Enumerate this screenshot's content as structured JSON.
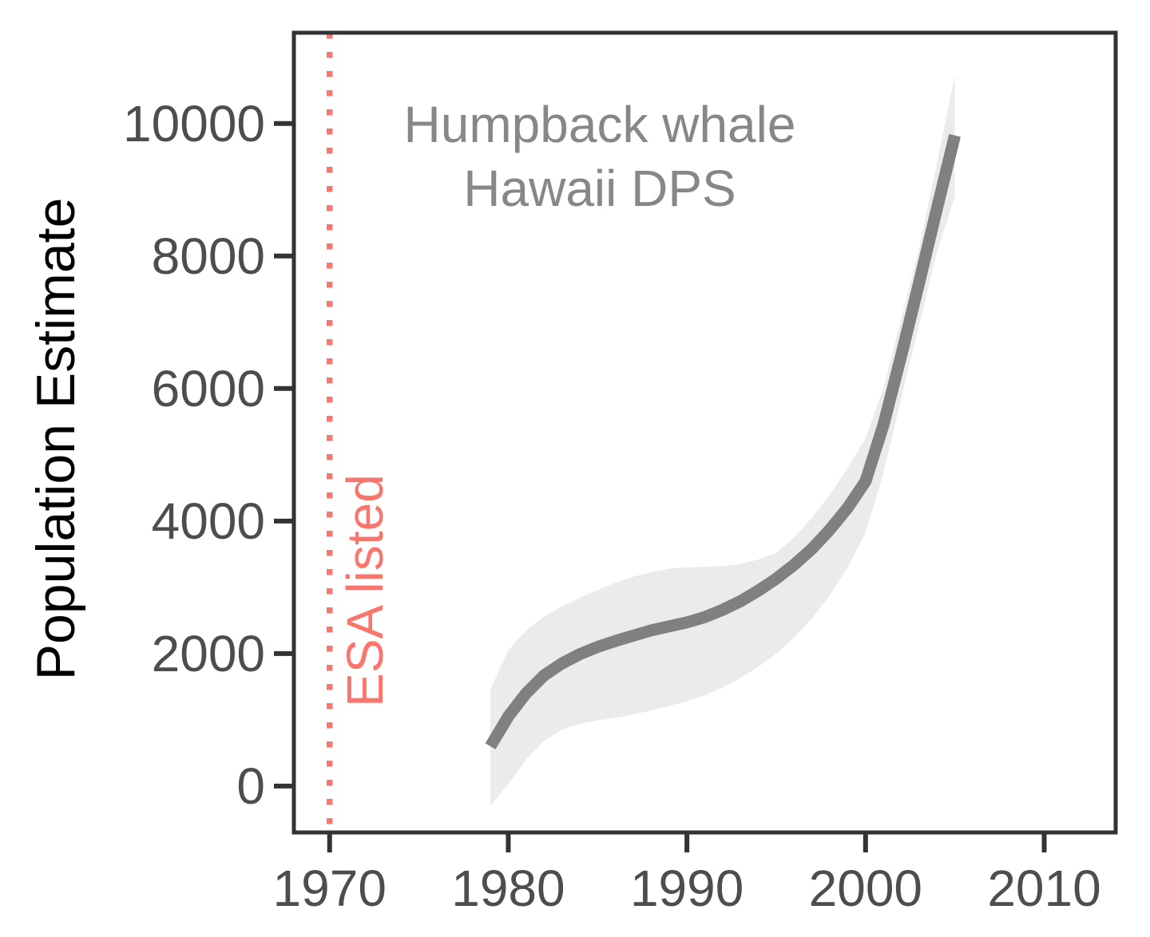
{
  "chart_data": {
    "type": "line",
    "annotation": {
      "line1": "Humpback whale",
      "line2": "Hawaii DPS"
    },
    "ylabel": "Population Estimate",
    "xlabel": "",
    "x_ticks": [
      1970,
      1980,
      1990,
      2000,
      2010
    ],
    "y_ticks": [
      0,
      2000,
      4000,
      6000,
      8000,
      10000
    ],
    "xlim": [
      1968,
      2014
    ],
    "ylim": [
      -700,
      11370
    ],
    "grid": false,
    "legend": "none",
    "vline": {
      "x": 1970,
      "label": "ESA listed",
      "style": "dotted"
    },
    "series": [
      {
        "name": "loess_population_fit",
        "x": [
          1979,
          1980,
          1981,
          1982,
          1983,
          1984,
          1985,
          1986,
          1987,
          1988,
          1989,
          1990,
          1991,
          1992,
          1993,
          1994,
          1995,
          1996,
          1997,
          1998,
          1999,
          2000,
          2001,
          2002,
          2003,
          2004,
          2005
        ],
        "y": [
          600,
          1050,
          1400,
          1670,
          1850,
          1990,
          2100,
          2190,
          2270,
          2350,
          2410,
          2470,
          2550,
          2660,
          2790,
          2950,
          3130,
          3340,
          3580,
          3870,
          4200,
          4600,
          5450,
          6500,
          7600,
          8720,
          9820
        ]
      }
    ],
    "band": {
      "name": "confidence_interval",
      "x": [
        1979,
        1980,
        1981,
        1982,
        1983,
        1984,
        1985,
        1986,
        1987,
        1988,
        1989,
        1990,
        1991,
        1992,
        1993,
        1994,
        1995,
        1996,
        1997,
        1998,
        1999,
        2000,
        2001,
        2002,
        2003,
        2004,
        2005
      ],
      "lower": [
        -300,
        30,
        400,
        680,
        850,
        940,
        990,
        1030,
        1080,
        1140,
        1210,
        1280,
        1370,
        1490,
        1630,
        1800,
        2000,
        2240,
        2530,
        2880,
        3300,
        3820,
        4720,
        5850,
        6960,
        8060,
        8900
      ],
      "upper": [
        1460,
        2050,
        2350,
        2560,
        2710,
        2840,
        2960,
        3070,
        3160,
        3230,
        3280,
        3300,
        3310,
        3320,
        3350,
        3420,
        3520,
        3750,
        4050,
        4400,
        4800,
        5250,
        6000,
        7050,
        8120,
        9400,
        10740
      ]
    },
    "colors": {
      "band": "#EBEBEB",
      "line": "#808080",
      "vline": "#F8766D",
      "border": "#333333",
      "tick_label": "#4D4D4D",
      "axis_title": "#000000",
      "title": "#878787"
    }
  }
}
